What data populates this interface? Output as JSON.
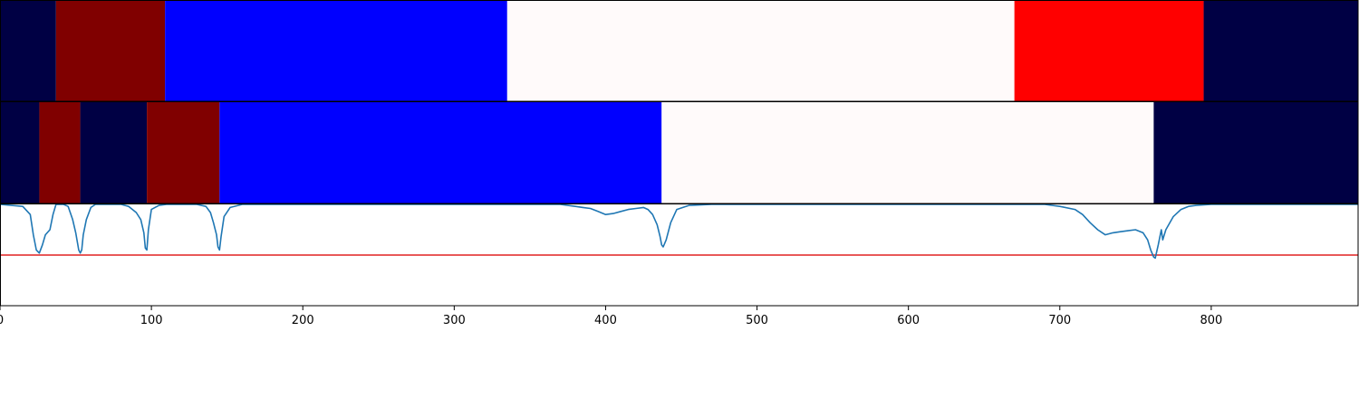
{
  "chart_data": [
    {
      "type": "heatmap",
      "panel": "segmentation-track-1",
      "segments": [
        {
          "start": 0,
          "end": 37,
          "color": "#000044"
        },
        {
          "start": 37,
          "end": 109,
          "color": "#800000"
        },
        {
          "start": 109,
          "end": 335,
          "color": "#0000ff"
        },
        {
          "start": 335,
          "end": 670,
          "color": "#fffafa"
        },
        {
          "start": 670,
          "end": 795,
          "color": "#ff0000"
        },
        {
          "start": 795,
          "end": 897,
          "color": "#000044"
        }
      ]
    },
    {
      "type": "heatmap",
      "panel": "segmentation-track-2",
      "segments": [
        {
          "start": 0,
          "end": 26,
          "color": "#000044"
        },
        {
          "start": 26,
          "end": 53,
          "color": "#800000"
        },
        {
          "start": 53,
          "end": 97,
          "color": "#000044"
        },
        {
          "start": 97,
          "end": 145,
          "color": "#800000"
        },
        {
          "start": 145,
          "end": 437,
          "color": "#0000ff"
        },
        {
          "start": 437,
          "end": 762,
          "color": "#fffafa"
        },
        {
          "start": 762,
          "end": 897,
          "color": "#000044"
        }
      ]
    },
    {
      "type": "line",
      "panel": "boundary-probability",
      "ylim": [
        0,
        1
      ],
      "threshold": 0.5,
      "threshold_color": "#e02020",
      "line_color": "#1f77b4",
      "x": [
        0,
        15,
        20,
        22,
        24,
        26,
        28,
        30,
        33,
        35,
        37,
        39,
        40,
        42,
        45,
        48,
        50,
        52,
        53,
        54,
        55,
        57,
        60,
        63,
        66,
        70,
        80,
        85,
        90,
        93,
        95,
        96,
        97,
        98,
        100,
        105,
        110,
        130,
        136,
        139,
        141,
        143,
        144,
        145,
        146,
        148,
        152,
        160,
        370,
        380,
        385,
        390,
        395,
        400,
        405,
        410,
        415,
        420,
        425,
        428,
        431,
        434,
        436,
        437,
        438,
        440,
        443,
        447,
        455,
        470,
        690,
        700,
        710,
        715,
        720,
        725,
        730,
        735,
        740,
        745,
        750,
        755,
        758,
        760,
        762,
        763,
        765,
        767,
        768,
        770,
        775,
        780,
        785,
        790,
        800,
        900
      ],
      "y": [
        1.0,
        0.98,
        0.9,
        0.7,
        0.55,
        0.52,
        0.6,
        0.7,
        0.75,
        0.9,
        1.0,
        1.0,
        1.0,
        1.0,
        0.98,
        0.85,
        0.72,
        0.55,
        0.52,
        0.55,
        0.7,
        0.85,
        0.97,
        1.0,
        1.0,
        1.0,
        1.0,
        0.98,
        0.92,
        0.85,
        0.72,
        0.57,
        0.55,
        0.75,
        0.95,
        0.99,
        1.0,
        1.0,
        0.98,
        0.92,
        0.82,
        0.7,
        0.58,
        0.55,
        0.68,
        0.88,
        0.97,
        1.0,
        1.0,
        0.98,
        0.97,
        0.96,
        0.93,
        0.9,
        0.91,
        0.93,
        0.95,
        0.96,
        0.97,
        0.95,
        0.9,
        0.8,
        0.68,
        0.6,
        0.58,
        0.65,
        0.82,
        0.95,
        0.99,
        1.0,
        1.0,
        0.98,
        0.95,
        0.9,
        0.82,
        0.75,
        0.7,
        0.72,
        0.73,
        0.74,
        0.75,
        0.72,
        0.65,
        0.55,
        0.48,
        0.47,
        0.6,
        0.75,
        0.65,
        0.75,
        0.88,
        0.95,
        0.98,
        0.99,
        1.0,
        1.0
      ],
      "xlim": [
        0,
        897
      ],
      "xticks": [
        0,
        100,
        200,
        300,
        400,
        500,
        600,
        700,
        800
      ],
      "xtick_labels": [
        "0",
        "100",
        "200",
        "300",
        "400",
        "500",
        "600",
        "700",
        "800"
      ]
    }
  ]
}
